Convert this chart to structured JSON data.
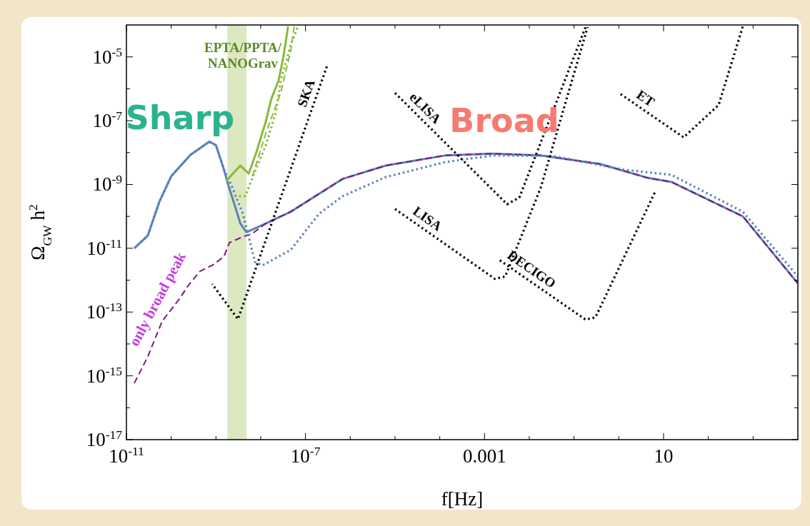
{
  "chart_data": {
    "type": "line",
    "xlabel": "f[Hz]",
    "ylabel": "Ω$_{GW}$ h$^{2}$",
    "log": "xy",
    "xlim": [
      1e-11,
      10000
    ],
    "ylim": [
      1e-17,
      0.0001
    ],
    "xticks": [
      {
        "value": 1e-11,
        "label": "10$^{-11}$"
      },
      {
        "value": 1e-10,
        "label": null
      },
      {
        "value": 1e-09,
        "label": null
      },
      {
        "value": 1e-08,
        "label": null
      },
      {
        "value": 1e-07,
        "label": "10$^{-7}$"
      },
      {
        "value": 1e-06,
        "label": null
      },
      {
        "value": 1e-05,
        "label": null
      },
      {
        "value": 0.0001,
        "label": null
      },
      0.001,
      {
        "value": 0.01,
        "label": null
      },
      {
        "value": 0.1,
        "label": null
      },
      {
        "value": 1,
        "label": null
      },
      10,
      {
        "value": 100,
        "label": null
      },
      {
        "value": 1000,
        "label": null
      }
    ],
    "yticks": [
      {
        "value": 1e-17,
        "label": "10$^{-17}$"
      },
      {
        "value": 1e-16,
        "label": null
      },
      {
        "value": 1e-15,
        "label": "10$^{-15}$"
      },
      {
        "value": 1e-14,
        "label": null
      },
      {
        "value": 1e-13,
        "label": "10$^{-13}$"
      },
      {
        "value": 1e-12,
        "label": null
      },
      {
        "value": 1e-11,
        "label": "10$^{-11}$"
      },
      {
        "value": 1e-10,
        "label": null
      },
      {
        "value": 1e-09,
        "label": "10$^{-9}$"
      },
      {
        "value": 1e-08,
        "label": null
      },
      {
        "value": 1e-07,
        "label": "10$^{-7}$"
      },
      {
        "value": 1e-06,
        "label": null
      },
      {
        "value": 1e-05,
        "label": "10$^{-5}$"
      }
    ],
    "bands": [
      {
        "axis": "x",
        "from": 1.8e-09,
        "to": 4.8e-09,
        "color": "#d3e2b0"
      }
    ],
    "series": [
      {
        "color": "#5b82b8",
        "line_style": "solid",
        "x": [
          1.5e-11,
          3e-11,
          5.4e-11,
          1e-10,
          2.7e-10,
          7.1e-10,
          1e-09,
          1.5e-09,
          1.9e-09,
          2.5e-09,
          3.5e-09,
          4.8e-09,
          1.3e-08,
          4.7e-08,
          6.8e-07,
          6.2e-06,
          0.00013,
          0.0015,
          0.018,
          0.38,
          4.5,
          15,
          590,
          10000
        ],
        "values": [
          1e-11,
          2.5e-11,
          2.8e-10,
          1.8e-09,
          8.5e-09,
          2.2e-08,
          1.7e-08,
          3e-09,
          9.3e-10,
          2.8e-10,
          6e-11,
          3.2e-11,
          6e-11,
          1.4e-10,
          1.5e-09,
          3.9e-09,
          8.1e-09,
          9.3e-09,
          8.1e-09,
          4.4e-09,
          1.6e-09,
          1.2e-09,
          1e-10,
          7.9e-13
        ]
      },
      {
        "color": "#7b1a80",
        "line_style": "dashed",
        "x": [
          1.5e-11,
          3e-11,
          6.3e-11,
          1.5e-10,
          2.4e-10,
          4.4e-10,
          8.2e-10,
          1.5e-09,
          2e-09,
          4e-09,
          6.5e-09,
          1.3e-08,
          4.7e-08,
          6.8e-07,
          6.2e-06,
          0.00013,
          0.0015,
          0.018,
          0.38,
          4.5,
          15,
          590,
          10000
        ],
        "values": [
          5.9e-16,
          4e-15,
          5.2e-14,
          2.5e-13,
          6.8e-13,
          1.9e-12,
          2.9e-12,
          5.4e-12,
          1.5e-11,
          2.3e-11,
          2.9e-11,
          6e-11,
          1.4e-10,
          1.5e-09,
          3.9e-09,
          8.1e-09,
          9.3e-09,
          8.1e-09,
          4.4e-09,
          1.6e-09,
          1.2e-09,
          1e-10,
          7.9e-13
        ]
      },
      {
        "color": "#5b82b8",
        "line_style": "dotted",
        "x": [
          1.5e-11,
          3e-11,
          5.4e-11,
          1e-10,
          2.7e-10,
          7.1e-10,
          1e-09,
          1.5e-09,
          2.3e-09,
          4e-09,
          5.8e-09,
          7.5e-09,
          1.1e-08,
          4.7e-08,
          2e-07,
          6.8e-07,
          6.2e-06,
          0.00013,
          0.0015,
          0.032,
          1.3,
          15,
          590,
          10000
        ],
        "values": [
          1e-11,
          2.5e-11,
          2.8e-10,
          1.8e-09,
          8.5e-09,
          2.2e-08,
          1.7e-08,
          3e-09,
          8.3e-10,
          1.2e-10,
          1.5e-11,
          3.7e-12,
          2.9e-12,
          8.9e-12,
          1.2e-10,
          4.3e-10,
          1.7e-09,
          5e-09,
          8.1e-09,
          7.9e-09,
          2.9e-09,
          2e-09,
          1.4e-10,
          1.3e-12
        ]
      },
      {
        "color": "#8ab83a",
        "line_style": "solid",
        "x": [
          1.7e-09,
          3.5e-09,
          5.4e-09,
          8.3e-09,
          1.3e-08,
          1.7e-08,
          2.5e-08,
          3.2e-08,
          4.1e-08
        ],
        "values": [
          1.3e-09,
          3.9e-09,
          2.2e-09,
          1.2e-08,
          9.5e-08,
          4.5e-07,
          1.8e-06,
          9.8e-06,
          9e-05
        ]
      },
      {
        "color": "#8ab83a",
        "line_style": "dotted",
        "x": [
          2.6e-09,
          4.5e-09,
          7.5e-09,
          1.3e-08,
          2.2e-08,
          2.8e-08,
          4.7e-08,
          6.8e-08
        ],
        "values": [
          4.3e-10,
          4.3e-10,
          2.6e-09,
          1.7e-08,
          1.9e-07,
          1.8e-06,
          2.4e-05,
          9e-05
        ]
      },
      {
        "color": "#8ab83a",
        "line_style": "dashed",
        "x": [
          6.5e-09,
          1.3e-08,
          2.8e-08,
          4.7e-08,
          5.6e-08
        ],
        "values": [
          1.8e-09,
          4e-08,
          7.5e-07,
          1.6e-05,
          9e-05
        ]
      },
      {
        "name": "SKA",
        "color": "#000000",
        "line_style": "dotted",
        "x": [
          3e-07,
          3.1e-09,
          8.2e-10
        ],
        "values": [
          5e-06,
          6e-14,
          7.6e-13
        ]
      },
      {
        "name": "eLISA",
        "color": "#000000",
        "line_style": "dotted",
        "x": [
          1e-05,
          0.0032,
          0.006,
          0.18
        ],
        "values": [
          7.4e-07,
          2.4e-10,
          3.9e-10,
          8.5e-05
        ]
      },
      {
        "name": "LISA",
        "color": "#000000",
        "line_style": "dotted",
        "x": [
          1e-05,
          0.0017,
          0.0029,
          0.018,
          0.2
        ],
        "values": [
          1.7e-10,
          1.1e-12,
          1.3e-12,
          7.9e-10,
          8.5e-05
        ]
      },
      {
        "name": "DECIGO",
        "color": "#000000",
        "line_style": "dotted",
        "x": [
          0.0022,
          0.18,
          0.3,
          6.6
        ],
        "values": [
          4.2e-12,
          5.8e-14,
          6.8e-14,
          6.2e-10
        ]
      },
      {
        "name": "ET",
        "color": "#000000",
        "line_style": "dotted",
        "x": [
          1.1,
          28,
          170,
          590
        ],
        "values": [
          6.8e-07,
          3e-08,
          3.1e-07,
          9.1e-05
        ]
      }
    ],
    "annotations": [
      "Sharp",
      "Broad",
      {
        "text": "EPTA/PPTA/\nNANOGrav",
        "x": 4e-09,
        "y": 9.8e-06
      },
      "only broad peak"
    ]
  }
}
